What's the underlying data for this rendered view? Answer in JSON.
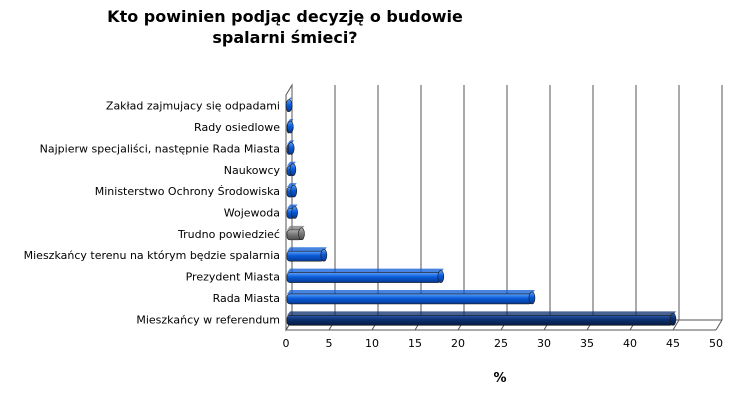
{
  "chart_data": {
    "type": "bar",
    "orientation": "horizontal",
    "title_lines": [
      "Kto powinien podjąc decyzję o budowie",
      "spalarni śmieci?"
    ],
    "xlabel": "%",
    "xlim": [
      0,
      50
    ],
    "xticks": [
      "0",
      "5",
      "10",
      "15",
      "20",
      "25",
      "30",
      "35",
      "40",
      "45",
      "50"
    ],
    "grid": true,
    "categories": [
      "Zakład zajmujacy się odpadami",
      "Rady osiedlowe",
      "Najpierw specjaliści, następnie Rada Miasta",
      "Naukowcy",
      "Ministerstwo Ochrony Środowiska",
      "Wojewoda",
      "Trudno powiedzieć",
      "Mieszkańcy terenu na którym będzie spalarnia",
      "Prezydent Miasta",
      "Rada Miasta",
      "Mieszkańcy w referendum"
    ],
    "values": [
      0.3,
      0.5,
      0.6,
      0.8,
      0.9,
      1.0,
      1.8,
      4.4,
      18.0,
      28.6,
      45.0
    ],
    "colors": [
      "#0a5ad6",
      "#0a5ad6",
      "#0a5ad6",
      "#0a5ad6",
      "#0a5ad6",
      "#0a5ad6",
      "#7a7a7a",
      "#0a5ad6",
      "#0a5ad6",
      "#0a5ad6",
      "#0b2e6e"
    ]
  }
}
